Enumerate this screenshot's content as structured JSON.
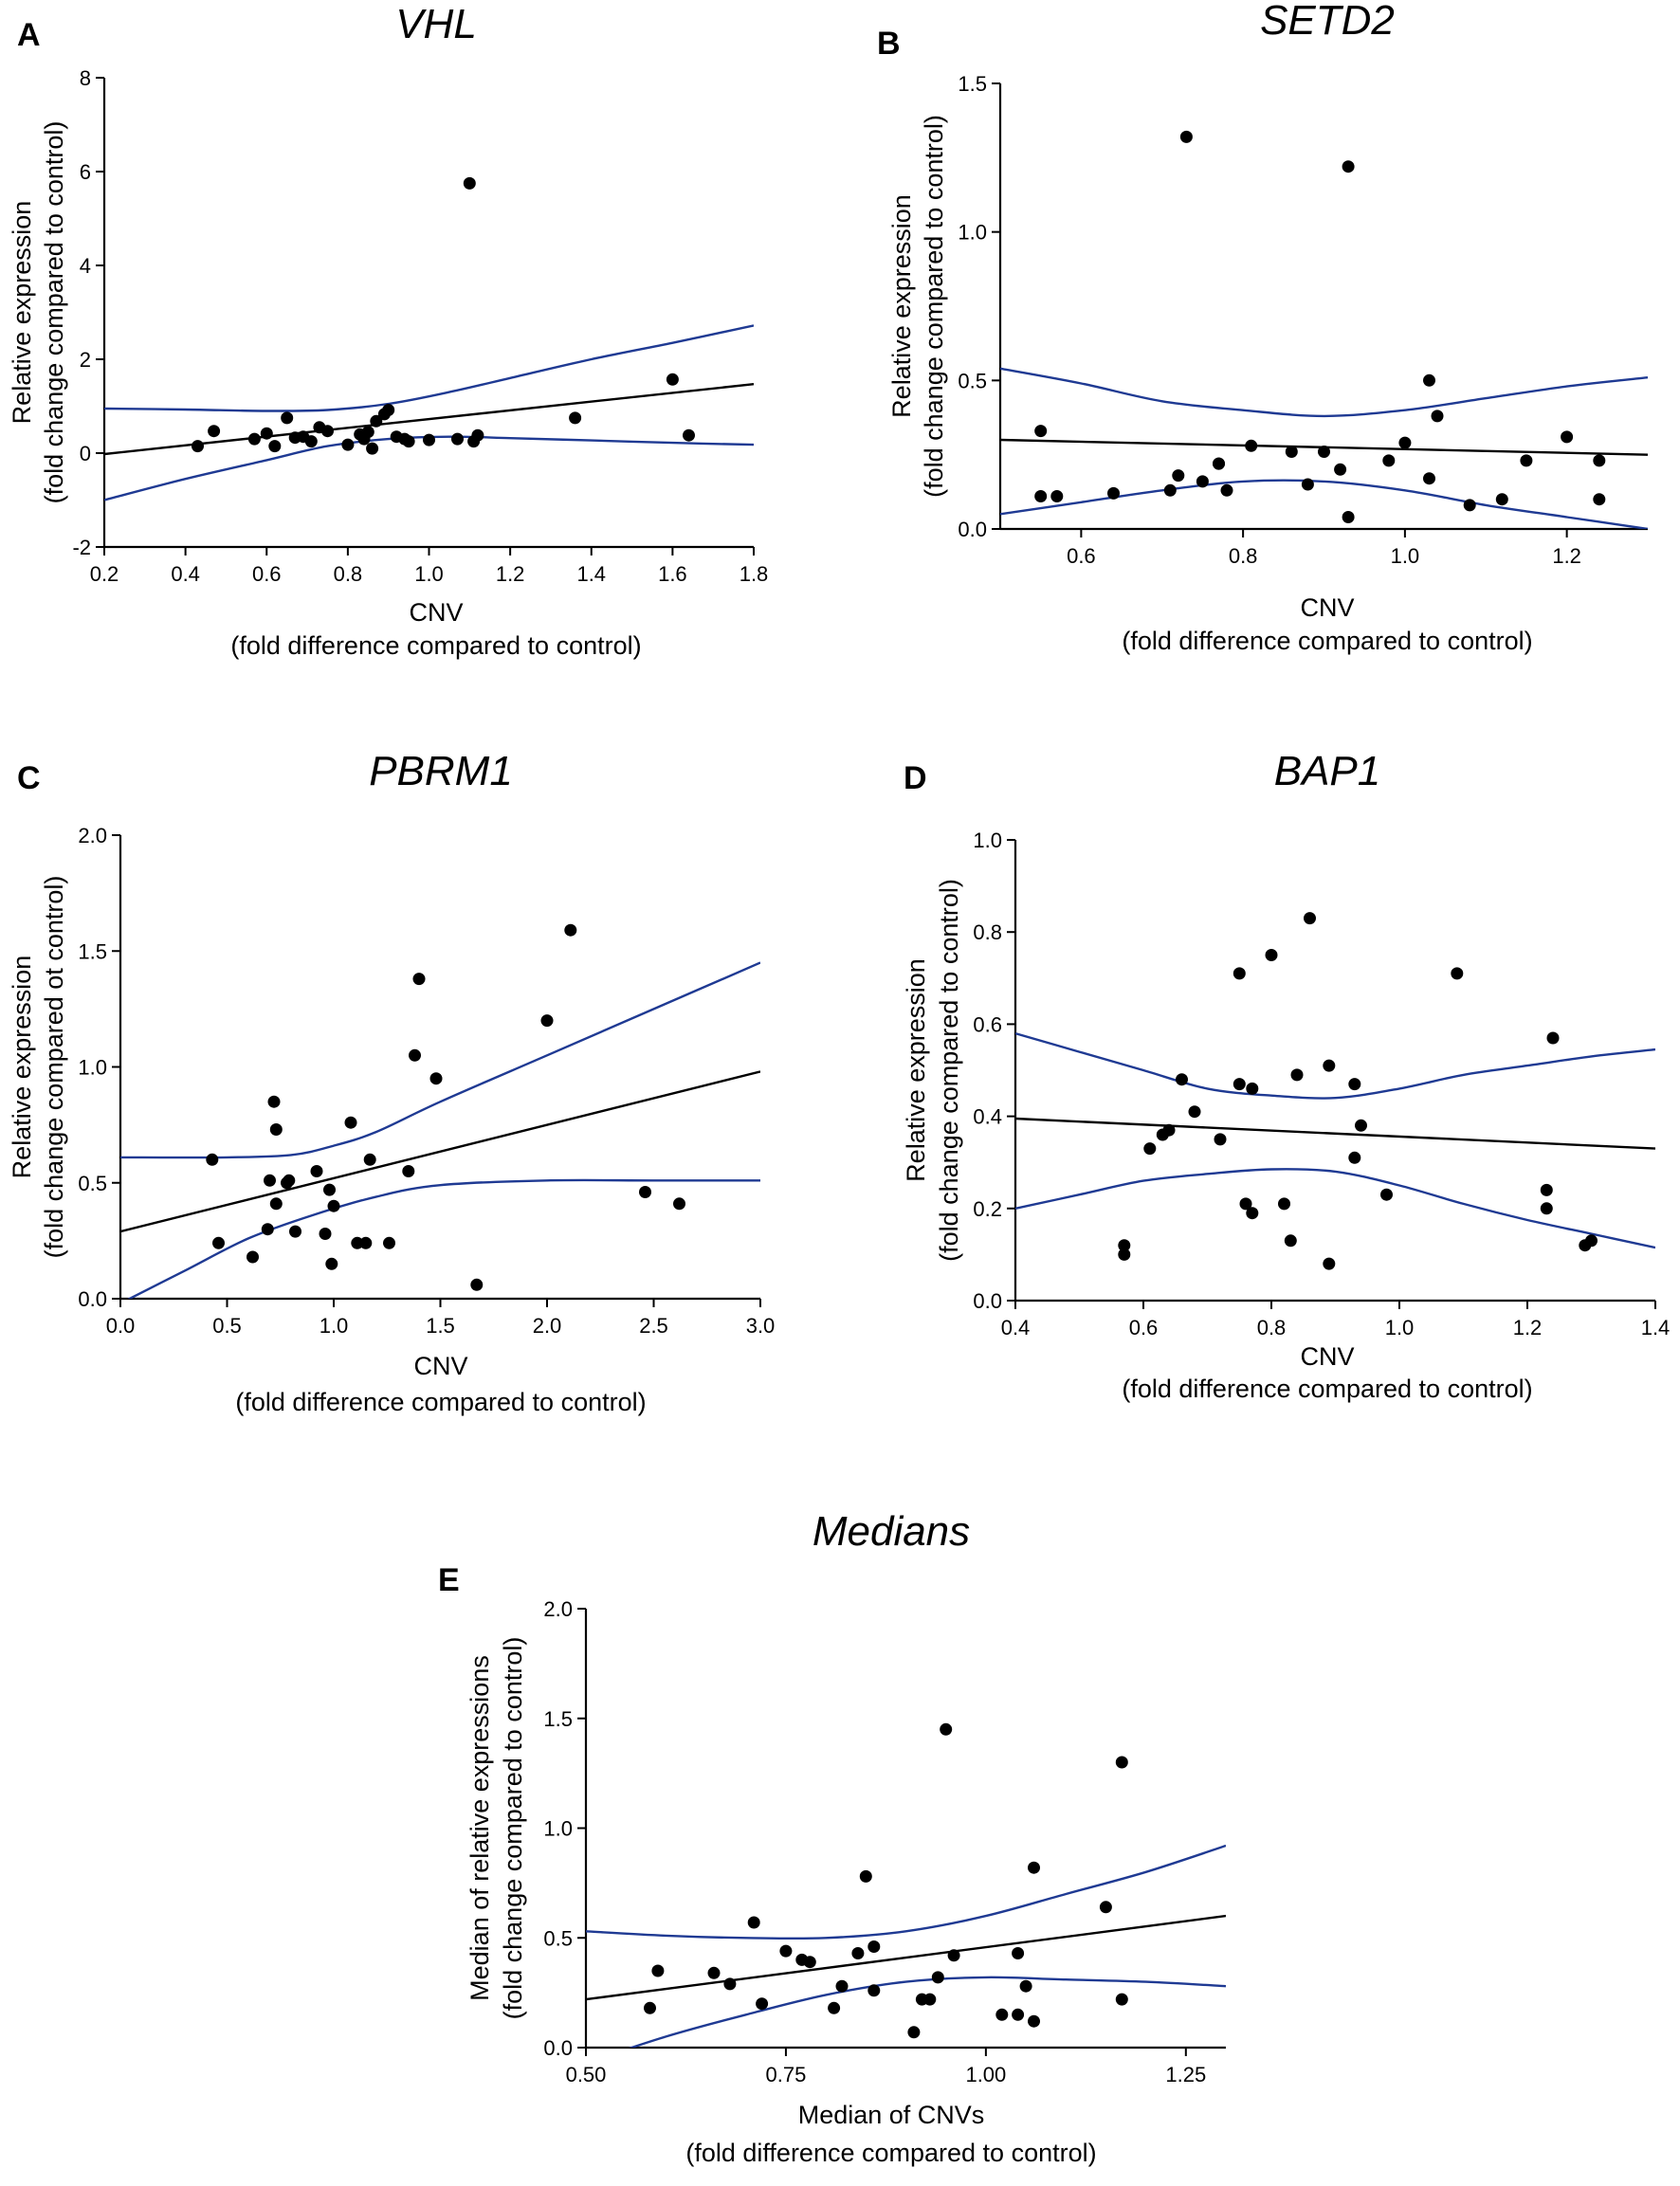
{
  "chart_data": [
    {
      "id": "A",
      "type": "scatter",
      "panel_label": "A",
      "title": "VHL",
      "xlabel": [
        "CNV",
        "(fold difference compared to control)"
      ],
      "ylabel": [
        "Relative expression",
        "(fold change compared to control)"
      ],
      "xlim": [
        0.2,
        1.8
      ],
      "ylim": [
        -2,
        8
      ],
      "xticks": [
        "0.2",
        "0.4",
        "0.6",
        "0.8",
        "1.0",
        "1.2",
        "1.4",
        "1.6",
        "1.8"
      ],
      "yticks": [
        "-2",
        "0",
        "2",
        "4",
        "6",
        "8"
      ],
      "points": [
        [
          0.43,
          0.15
        ],
        [
          0.47,
          0.47
        ],
        [
          0.57,
          0.3
        ],
        [
          0.6,
          0.42
        ],
        [
          0.62,
          0.15
        ],
        [
          0.65,
          0.75
        ],
        [
          0.67,
          0.33
        ],
        [
          0.69,
          0.35
        ],
        [
          0.71,
          0.25
        ],
        [
          0.73,
          0.55
        ],
        [
          0.75,
          0.47
        ],
        [
          0.8,
          0.18
        ],
        [
          0.83,
          0.4
        ],
        [
          0.84,
          0.3
        ],
        [
          0.85,
          0.45
        ],
        [
          0.86,
          0.1
        ],
        [
          0.87,
          0.68
        ],
        [
          0.89,
          0.83
        ],
        [
          0.9,
          0.92
        ],
        [
          0.92,
          0.35
        ],
        [
          0.94,
          0.3
        ],
        [
          0.95,
          0.25
        ],
        [
          1.0,
          0.28
        ],
        [
          1.07,
          0.3
        ],
        [
          1.1,
          5.75
        ],
        [
          1.11,
          0.25
        ],
        [
          1.12,
          0.38
        ],
        [
          1.36,
          0.75
        ],
        [
          1.6,
          1.57
        ],
        [
          1.64,
          0.38
        ]
      ],
      "fit_line": [
        [
          0.2,
          -0.02
        ],
        [
          1.8,
          1.47
        ]
      ],
      "ci_upper": [
        [
          0.2,
          0.95
        ],
        [
          0.4,
          0.93
        ],
        [
          0.6,
          0.9
        ],
        [
          0.75,
          0.92
        ],
        [
          0.9,
          1.05
        ],
        [
          1.05,
          1.3
        ],
        [
          1.2,
          1.6
        ],
        [
          1.4,
          2.0
        ],
        [
          1.6,
          2.35
        ],
        [
          1.8,
          2.72
        ]
      ],
      "ci_lower": [
        [
          0.2,
          -1.0
        ],
        [
          0.4,
          -0.55
        ],
        [
          0.6,
          -0.15
        ],
        [
          0.75,
          0.15
        ],
        [
          0.9,
          0.3
        ],
        [
          1.05,
          0.35
        ],
        [
          1.2,
          0.32
        ],
        [
          1.4,
          0.27
        ],
        [
          1.6,
          0.22
        ],
        [
          1.8,
          0.18
        ]
      ]
    },
    {
      "id": "B",
      "type": "scatter",
      "panel_label": "B",
      "title": "SETD2",
      "xlabel": [
        "CNV",
        "(fold difference compared to control)"
      ],
      "ylabel": [
        "Relative expression",
        "(fold change compared to control)"
      ],
      "xlim": [
        0.5,
        1.3
      ],
      "ylim": [
        0,
        1.5
      ],
      "xticks": [
        "0.6",
        "0.8",
        "1.0",
        "1.2"
      ],
      "yticks": [
        "0.0",
        "0.5",
        "1.0",
        "1.5"
      ],
      "points": [
        [
          0.55,
          0.33
        ],
        [
          0.55,
          0.11
        ],
        [
          0.57,
          0.11
        ],
        [
          0.64,
          0.12
        ],
        [
          0.71,
          0.13
        ],
        [
          0.72,
          0.18
        ],
        [
          0.73,
          1.32
        ],
        [
          0.75,
          0.16
        ],
        [
          0.77,
          0.22
        ],
        [
          0.77,
          0.22
        ],
        [
          0.78,
          0.13
        ],
        [
          0.81,
          0.28
        ],
        [
          0.86,
          0.26
        ],
        [
          0.88,
          0.15
        ],
        [
          0.9,
          0.26
        ],
        [
          0.92,
          0.2
        ],
        [
          0.93,
          1.22
        ],
        [
          0.93,
          0.04
        ],
        [
          0.98,
          0.23
        ],
        [
          1.0,
          0.29
        ],
        [
          1.03,
          0.17
        ],
        [
          1.03,
          0.5
        ],
        [
          1.04,
          0.38
        ],
        [
          1.08,
          0.08
        ],
        [
          1.12,
          0.1
        ],
        [
          1.15,
          0.23
        ],
        [
          1.2,
          0.31
        ],
        [
          1.24,
          0.23
        ],
        [
          1.24,
          0.1
        ]
      ],
      "fit_line": [
        [
          0.5,
          0.3
        ],
        [
          1.3,
          0.25
        ]
      ],
      "ci_upper": [
        [
          0.5,
          0.54
        ],
        [
          0.6,
          0.49
        ],
        [
          0.7,
          0.43
        ],
        [
          0.8,
          0.4
        ],
        [
          0.9,
          0.38
        ],
        [
          1.0,
          0.4
        ],
        [
          1.1,
          0.44
        ],
        [
          1.2,
          0.48
        ],
        [
          1.3,
          0.51
        ]
      ],
      "ci_lower": [
        [
          0.5,
          0.05
        ],
        [
          0.6,
          0.09
        ],
        [
          0.7,
          0.13
        ],
        [
          0.8,
          0.16
        ],
        [
          0.9,
          0.16
        ],
        [
          1.0,
          0.13
        ],
        [
          1.1,
          0.08
        ],
        [
          1.2,
          0.04
        ],
        [
          1.3,
          0.0
        ]
      ]
    },
    {
      "id": "C",
      "type": "scatter",
      "panel_label": "C",
      "title": "PBRM1",
      "xlabel": [
        "CNV",
        "(fold difference compared to control)"
      ],
      "ylabel": [
        "Relative expression",
        "(fold change compared ot control)"
      ],
      "xlim": [
        0,
        3
      ],
      "ylim": [
        0,
        2
      ],
      "xticks": [
        "0.0",
        "0.5",
        "1.0",
        "1.5",
        "2.0",
        "2.5",
        "3.0"
      ],
      "yticks": [
        "0.0",
        "0.5",
        "1.0",
        "1.5",
        "2.0"
      ],
      "points": [
        [
          0.43,
          0.6
        ],
        [
          0.46,
          0.24
        ],
        [
          0.62,
          0.18
        ],
        [
          0.69,
          0.3
        ],
        [
          0.7,
          0.51
        ],
        [
          0.72,
          0.85
        ],
        [
          0.73,
          0.73
        ],
        [
          0.73,
          0.41
        ],
        [
          0.78,
          0.5
        ],
        [
          0.79,
          0.51
        ],
        [
          0.82,
          0.29
        ],
        [
          0.92,
          0.55
        ],
        [
          0.96,
          0.28
        ],
        [
          0.98,
          0.47
        ],
        [
          0.99,
          0.15
        ],
        [
          1.0,
          0.4
        ],
        [
          1.08,
          0.76
        ],
        [
          1.11,
          0.24
        ],
        [
          1.15,
          0.24
        ],
        [
          1.17,
          0.6
        ],
        [
          1.26,
          0.24
        ],
        [
          1.35,
          0.55
        ],
        [
          1.38,
          1.05
        ],
        [
          1.4,
          1.38
        ],
        [
          1.48,
          0.95
        ],
        [
          1.67,
          0.06
        ],
        [
          2.0,
          1.2
        ],
        [
          2.11,
          1.59
        ],
        [
          2.46,
          0.46
        ],
        [
          2.62,
          0.41
        ]
      ],
      "fit_line": [
        [
          0,
          0.29
        ],
        [
          3,
          0.98
        ]
      ],
      "ci_upper": [
        [
          0,
          0.61
        ],
        [
          0.5,
          0.61
        ],
        [
          0.8,
          0.62
        ],
        [
          1.0,
          0.66
        ],
        [
          1.2,
          0.72
        ],
        [
          1.5,
          0.85
        ],
        [
          2.0,
          1.05
        ],
        [
          2.5,
          1.25
        ],
        [
          3.0,
          1.45
        ]
      ],
      "ci_lower": [
        [
          0,
          -0.02
        ],
        [
          0.3,
          0.12
        ],
        [
          0.6,
          0.26
        ],
        [
          0.9,
          0.36
        ],
        [
          1.2,
          0.44
        ],
        [
          1.5,
          0.49
        ],
        [
          2.0,
          0.51
        ],
        [
          2.5,
          0.51
        ],
        [
          3.0,
          0.51
        ]
      ]
    },
    {
      "id": "D",
      "type": "scatter",
      "panel_label": "D",
      "title": "BAP1",
      "xlabel": [
        "CNV",
        "(fold difference compared to control)"
      ],
      "ylabel": [
        "Relative expression",
        "(fold change compared to control)"
      ],
      "xlim": [
        0.4,
        1.4
      ],
      "ylim": [
        0,
        1
      ],
      "xticks": [
        "0.4",
        "0.6",
        "0.8",
        "1.0",
        "1.2",
        "1.4"
      ],
      "yticks": [
        "0.0",
        "0.2",
        "0.4",
        "0.6",
        "0.8",
        "1.0"
      ],
      "points": [
        [
          0.57,
          0.12
        ],
        [
          0.57,
          0.1
        ],
        [
          0.61,
          0.33
        ],
        [
          0.63,
          0.36
        ],
        [
          0.64,
          0.37
        ],
        [
          0.66,
          0.48
        ],
        [
          0.68,
          0.41
        ],
        [
          0.72,
          0.35
        ],
        [
          0.75,
          0.71
        ],
        [
          0.75,
          0.47
        ],
        [
          0.76,
          0.21
        ],
        [
          0.77,
          0.19
        ],
        [
          0.77,
          0.46
        ],
        [
          0.8,
          0.75
        ],
        [
          0.82,
          0.21
        ],
        [
          0.83,
          0.13
        ],
        [
          0.84,
          0.49
        ],
        [
          0.86,
          0.83
        ],
        [
          0.89,
          0.51
        ],
        [
          0.89,
          0.08
        ],
        [
          0.93,
          0.31
        ],
        [
          0.93,
          0.47
        ],
        [
          0.94,
          0.38
        ],
        [
          0.98,
          0.23
        ],
        [
          1.09,
          0.71
        ],
        [
          1.23,
          0.2
        ],
        [
          1.23,
          0.24
        ],
        [
          1.24,
          0.57
        ],
        [
          1.29,
          0.12
        ],
        [
          1.3,
          0.13
        ]
      ],
      "fit_line": [
        [
          0.4,
          0.395
        ],
        [
          1.4,
          0.33
        ]
      ],
      "ci_upper": [
        [
          0.4,
          0.58
        ],
        [
          0.5,
          0.54
        ],
        [
          0.6,
          0.5
        ],
        [
          0.7,
          0.46
        ],
        [
          0.8,
          0.445
        ],
        [
          0.9,
          0.44
        ],
        [
          1.0,
          0.46
        ],
        [
          1.1,
          0.49
        ],
        [
          1.2,
          0.51
        ],
        [
          1.3,
          0.53
        ],
        [
          1.4,
          0.545
        ]
      ],
      "ci_lower": [
        [
          0.4,
          0.2
        ],
        [
          0.5,
          0.23
        ],
        [
          0.6,
          0.26
        ],
        [
          0.7,
          0.275
        ],
        [
          0.8,
          0.285
        ],
        [
          0.9,
          0.28
        ],
        [
          1.0,
          0.25
        ],
        [
          1.1,
          0.21
        ],
        [
          1.2,
          0.175
        ],
        [
          1.3,
          0.145
        ],
        [
          1.4,
          0.115
        ]
      ]
    },
    {
      "id": "E",
      "type": "scatter",
      "panel_label": "E",
      "title": "Medians",
      "xlabel": [
        "Median of CNVs",
        "(fold difference compared to control)"
      ],
      "ylabel": [
        "Median of relative expressions",
        "(fold change compared to control)"
      ],
      "xlim": [
        0.5,
        1.3
      ],
      "ylim": [
        0,
        2
      ],
      "xticks": [
        "0.50",
        "0.75",
        "1.00",
        "1.25"
      ],
      "yticks": [
        "0.0",
        "0.5",
        "1.0",
        "1.5",
        "2.0"
      ],
      "points": [
        [
          0.58,
          0.18
        ],
        [
          0.59,
          0.35
        ],
        [
          0.66,
          0.34
        ],
        [
          0.68,
          0.29
        ],
        [
          0.71,
          0.57
        ],
        [
          0.72,
          0.2
        ],
        [
          0.75,
          0.44
        ],
        [
          0.77,
          0.4
        ],
        [
          0.78,
          0.39
        ],
        [
          0.81,
          0.18
        ],
        [
          0.82,
          0.28
        ],
        [
          0.84,
          0.43
        ],
        [
          0.85,
          0.78
        ],
        [
          0.86,
          0.46
        ],
        [
          0.86,
          0.26
        ],
        [
          0.91,
          0.07
        ],
        [
          0.92,
          0.22
        ],
        [
          0.93,
          0.22
        ],
        [
          0.94,
          0.32
        ],
        [
          0.95,
          1.45
        ],
        [
          0.96,
          0.42
        ],
        [
          1.02,
          0.15
        ],
        [
          1.04,
          0.15
        ],
        [
          1.04,
          0.43
        ],
        [
          1.05,
          0.28
        ],
        [
          1.06,
          0.82
        ],
        [
          1.06,
          0.12
        ],
        [
          1.15,
          0.64
        ],
        [
          1.17,
          1.3
        ],
        [
          1.17,
          0.22
        ]
      ],
      "fit_line": [
        [
          0.5,
          0.22
        ],
        [
          1.3,
          0.6
        ]
      ],
      "ci_upper": [
        [
          0.5,
          0.53
        ],
        [
          0.6,
          0.51
        ],
        [
          0.7,
          0.5
        ],
        [
          0.8,
          0.5
        ],
        [
          0.9,
          0.53
        ],
        [
          1.0,
          0.6
        ],
        [
          1.1,
          0.7
        ],
        [
          1.2,
          0.8
        ],
        [
          1.3,
          0.92
        ]
      ],
      "ci_lower": [
        [
          0.5,
          -0.07
        ],
        [
          0.6,
          0.05
        ],
        [
          0.7,
          0.15
        ],
        [
          0.8,
          0.24
        ],
        [
          0.9,
          0.3
        ],
        [
          1.0,
          0.32
        ],
        [
          1.1,
          0.31
        ],
        [
          1.2,
          0.3
        ],
        [
          1.3,
          0.28
        ]
      ]
    }
  ],
  "colors": {
    "points": "#000000",
    "fit_line": "#000000",
    "confidence_band": "#1f3a93",
    "axes": "#000000"
  }
}
